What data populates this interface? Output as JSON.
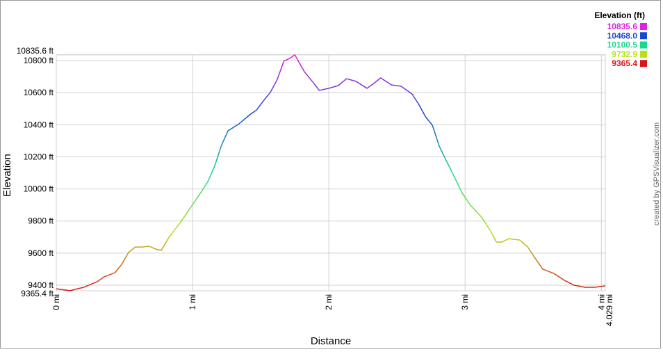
{
  "chart_data": {
    "type": "line",
    "y_label": "Elevation",
    "x_label": "Distance",
    "credit": "created by GPSVisualizer.com",
    "legend_title": "Elevation (ft)",
    "color_scale": [
      {
        "value": 10835.6,
        "color": "#e020e0"
      },
      {
        "value": 10468.0,
        "label": "10468.0",
        "color": "#1848d0"
      },
      {
        "value": 10100.5,
        "color": "#18d890"
      },
      {
        "value": 9732.9,
        "color": "#b8e018"
      },
      {
        "value": 9365.4,
        "color": "#d81818"
      }
    ],
    "xlim": [
      0,
      4.029
    ],
    "ylim": [
      9365.4,
      10835.6
    ],
    "xticks": [
      {
        "value": 0,
        "label": "0 mi"
      },
      {
        "value": 1,
        "label": "1 mi"
      },
      {
        "value": 2,
        "label": "2 mi"
      },
      {
        "value": 3,
        "label": "3 mi"
      },
      {
        "value": 4,
        "label": "4 mi"
      },
      {
        "value": 4.029,
        "label": "4.029 mi"
      }
    ],
    "yticks": [
      {
        "value": 9365.4,
        "label": "9365.4 ft"
      },
      {
        "value": 9400,
        "label": "9400 ft"
      },
      {
        "value": 9600,
        "label": "9600 ft"
      },
      {
        "value": 9800,
        "label": "9800 ft"
      },
      {
        "value": 10000,
        "label": "10000 ft"
      },
      {
        "value": 10200,
        "label": "10200 ft"
      },
      {
        "value": 10400,
        "label": "10400 ft"
      },
      {
        "value": 10600,
        "label": "10600 ft"
      },
      {
        "value": 10800,
        "label": "10800 ft"
      },
      {
        "value": 10835.6,
        "label": "10835.6 ft"
      }
    ],
    "grid": true,
    "x": [
      0,
      0.1,
      0.2,
      0.3,
      0.35,
      0.43,
      0.48,
      0.53,
      0.58,
      0.63,
      0.68,
      0.73,
      0.77,
      0.83,
      0.91,
      0.98,
      1.06,
      1.11,
      1.16,
      1.21,
      1.26,
      1.34,
      1.42,
      1.47,
      1.52,
      1.57,
      1.62,
      1.67,
      1.72,
      1.75,
      1.82,
      1.87,
      1.93,
      2.0,
      2.07,
      2.13,
      2.2,
      2.28,
      2.33,
      2.38,
      2.46,
      2.53,
      2.61,
      2.66,
      2.71,
      2.76,
      2.81,
      2.86,
      2.91,
      2.98,
      3.04,
      3.12,
      3.18,
      3.23,
      3.27,
      3.32,
      3.4,
      3.46,
      3.51,
      3.57,
      3.65,
      3.73,
      3.8,
      3.88,
      3.95,
      4.029
    ],
    "values": [
      9378,
      9366,
      9387,
      9422,
      9452,
      9478,
      9530,
      9604,
      9638,
      9638,
      9643,
      9625,
      9617,
      9703,
      9790,
      9877,
      9977,
      10042,
      10137,
      10267,
      10362,
      10405,
      10462,
      10492,
      10549,
      10601,
      10679,
      10796,
      10817,
      10835.6,
      10731,
      10679,
      10614,
      10627,
      10644,
      10687,
      10670,
      10627,
      10657,
      10692,
      10648,
      10640,
      10592,
      10527,
      10449,
      10397,
      10267,
      10180,
      10094,
      9972,
      9898,
      9825,
      9747,
      9669,
      9669,
      9690,
      9682,
      9638,
      9573,
      9500,
      9474,
      9430,
      9400,
      9387,
      9387,
      9396
    ]
  }
}
